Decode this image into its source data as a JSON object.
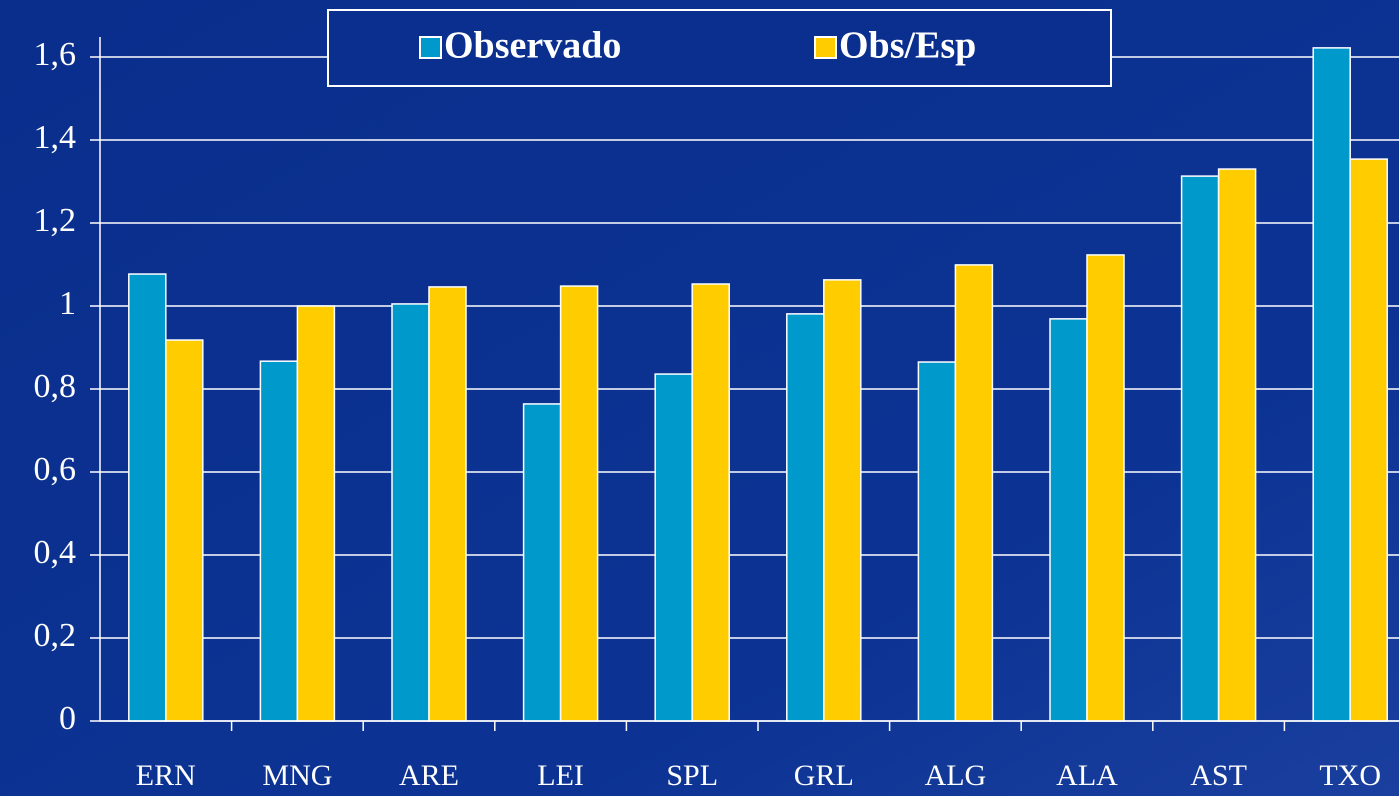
{
  "chart_data": {
    "type": "bar",
    "categories": [
      "ERN",
      "MNG",
      "ARE",
      "LEI",
      "SPL",
      "GRL",
      "ALG",
      "ALA",
      "AST",
      "TXO"
    ],
    "series": [
      {
        "name": "Observado",
        "color": "#0099cc",
        "values": [
          1.077,
          0.867,
          1.005,
          0.764,
          0.836,
          0.981,
          0.865,
          0.969,
          1.313,
          1.622
        ]
      },
      {
        "name": "Obs/Esp",
        "color": "#ffcc00",
        "values": [
          0.918,
          1.0,
          1.046,
          1.048,
          1.053,
          1.063,
          1.099,
          1.123,
          1.33,
          1.354
        ]
      }
    ],
    "ylim": [
      0,
      1.6
    ],
    "yticks": [
      0,
      {
        "value": 0.2,
        "label": "0,2"
      },
      {
        "value": 0.4,
        "label": "0,4"
      },
      {
        "value": 0.6,
        "label": "0,6"
      },
      {
        "value": 0.8,
        "label": "0,8"
      },
      1,
      {
        "value": 1.2,
        "label": "1,2"
      },
      {
        "value": 1.4,
        "label": "1,4"
      },
      {
        "value": 1.6,
        "label": "1,6"
      }
    ],
    "grid": true,
    "legend": "top"
  }
}
